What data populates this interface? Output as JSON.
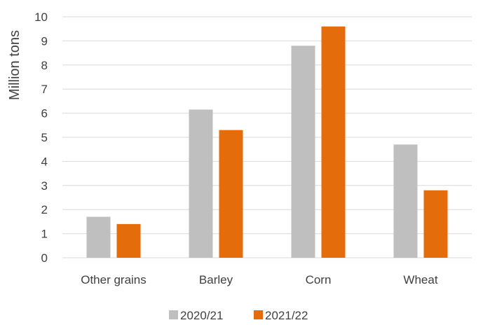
{
  "chart_data": {
    "type": "bar",
    "categories": [
      "Other grains",
      "Barley",
      "Corn",
      "Wheat"
    ],
    "series": [
      {
        "name": "2020/21",
        "color": "#bfbfbf",
        "values": [
          1.7,
          6.15,
          8.8,
          4.7
        ]
      },
      {
        "name": "2021/22",
        "color": "#e46c0a",
        "values": [
          1.4,
          5.3,
          9.6,
          2.8
        ]
      }
    ],
    "xlabel": "",
    "ylabel": "Million tons",
    "ylim": [
      0,
      10
    ],
    "yticks": [
      0,
      1,
      2,
      3,
      4,
      5,
      6,
      7,
      8,
      9,
      10
    ],
    "grid": true,
    "legend_position": "bottom"
  }
}
